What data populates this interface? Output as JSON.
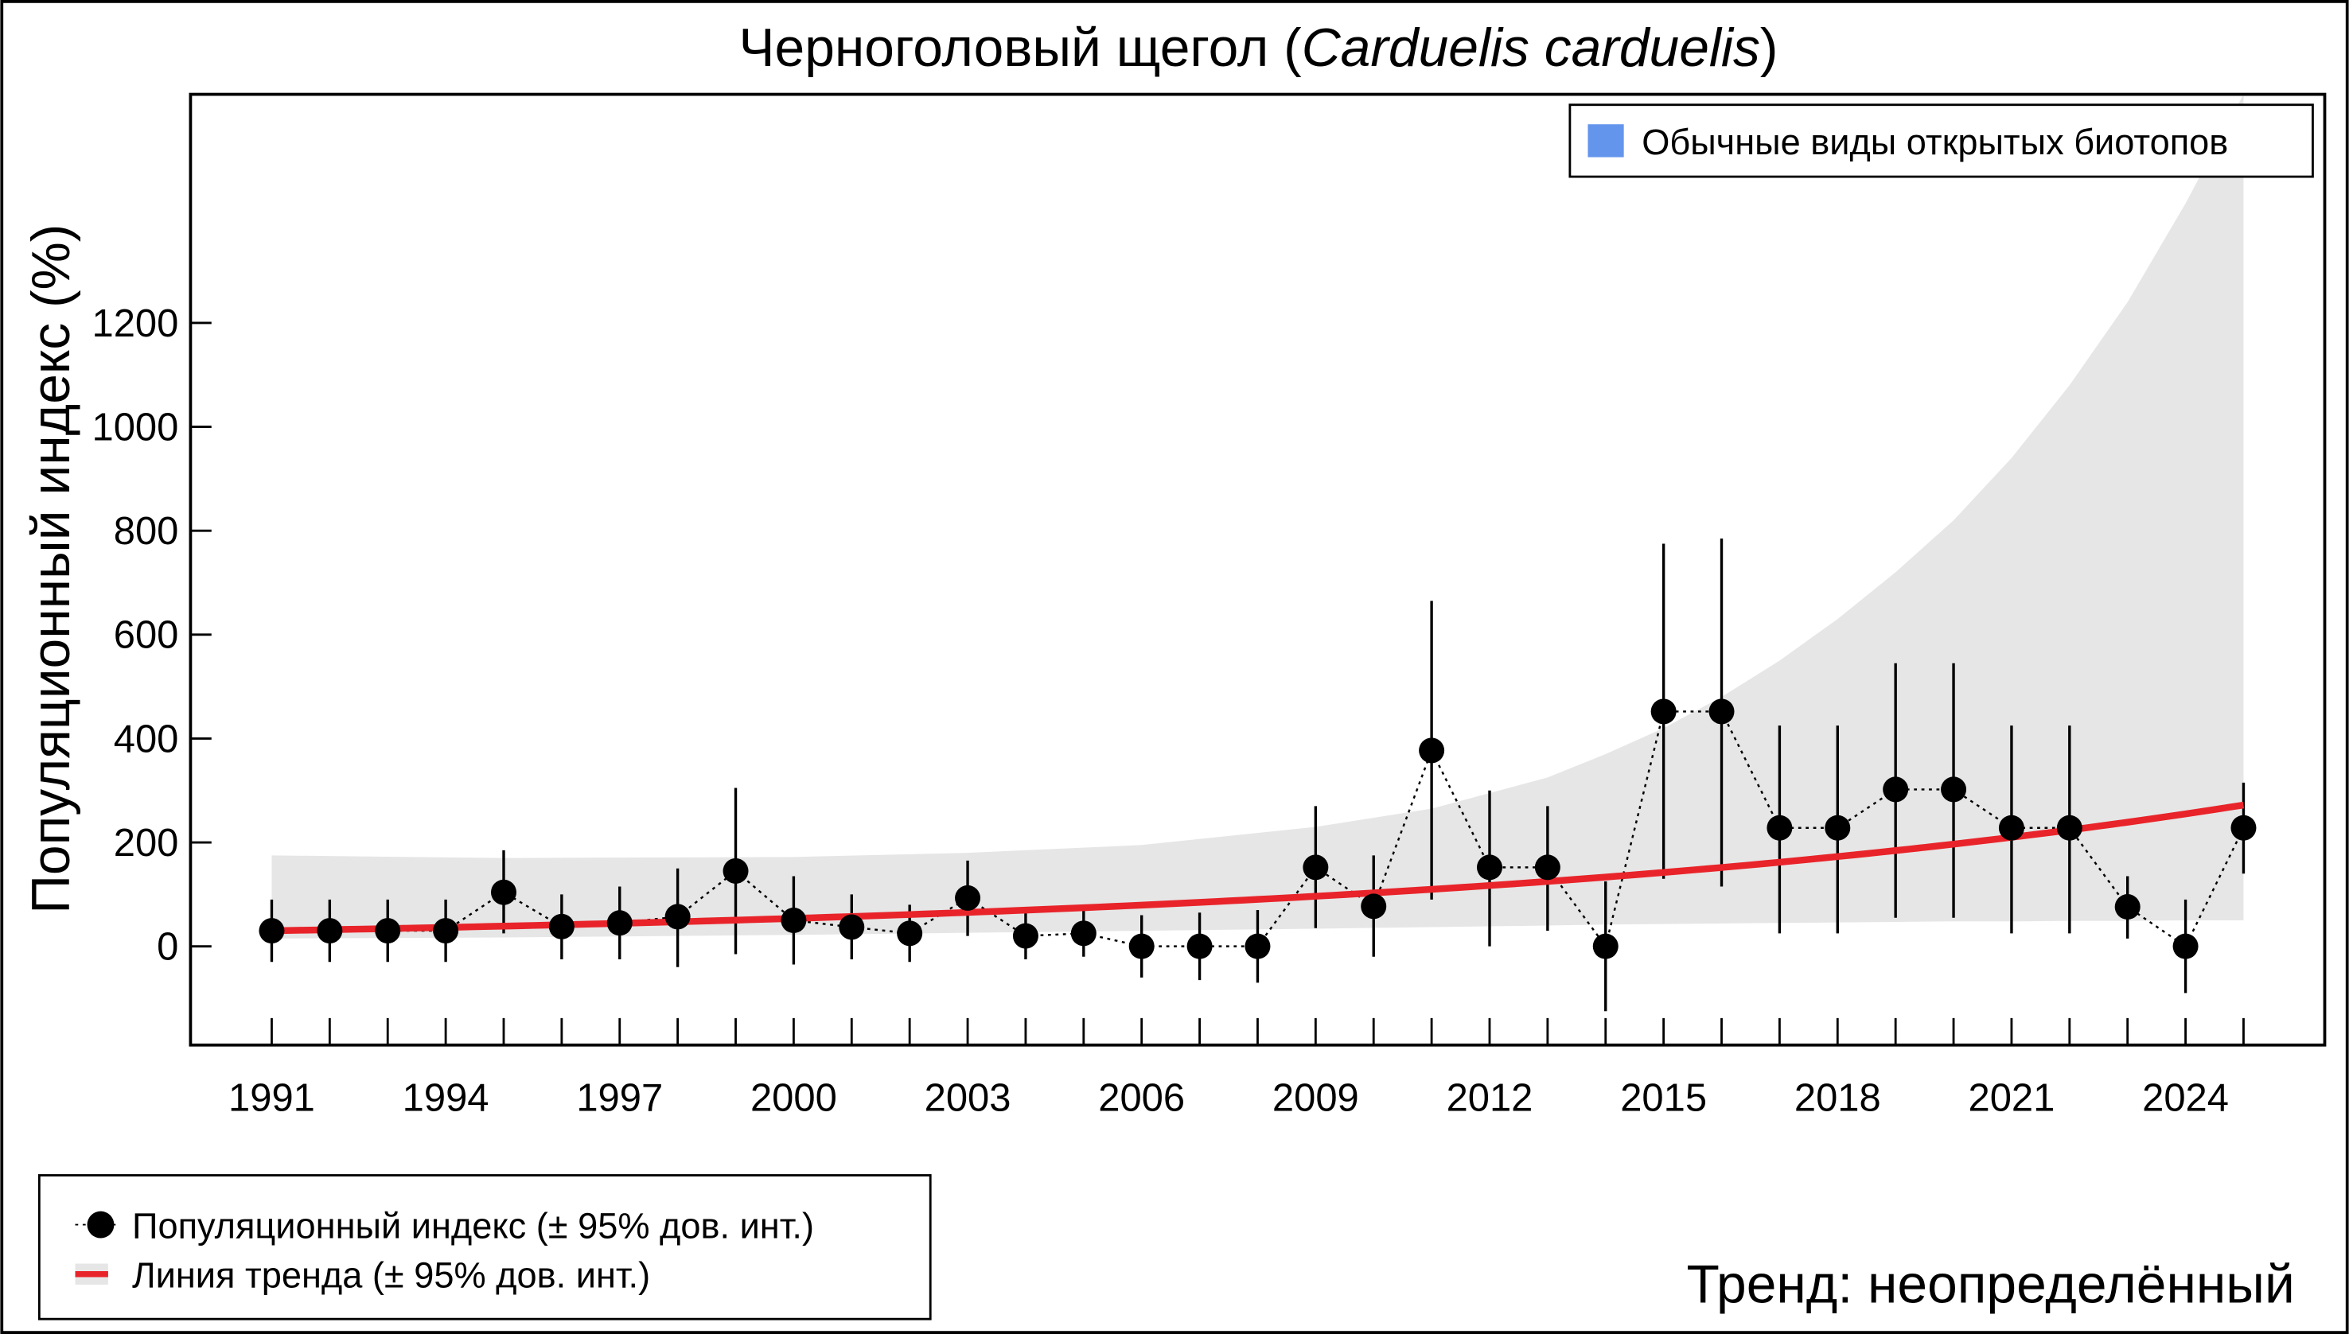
{
  "chart_data": {
    "type": "line",
    "title": "Черноголовый щегол",
    "title_latin": "Carduelis carduelis",
    "xlabel": "",
    "ylabel": "Популяционный индекс (%)",
    "xlim": [
      1989.6,
      2026.4
    ],
    "ylim": [
      -190,
      1640
    ],
    "x_ticks": [
      1991,
      1994,
      1997,
      2000,
      2003,
      2006,
      2009,
      2012,
      2015,
      2018,
      2021,
      2024
    ],
    "y_ticks": [
      0,
      200,
      400,
      600,
      800,
      1000,
      1200
    ],
    "grid": false,
    "years": [
      1991,
      1992,
      1993,
      1994,
      1995,
      1996,
      1997,
      1998,
      1999,
      2000,
      2001,
      2002,
      2003,
      2004,
      2005,
      2006,
      2007,
      2008,
      2009,
      2010,
      2011,
      2012,
      2013,
      2014,
      2015,
      2016,
      2017,
      2018,
      2019,
      2020,
      2021,
      2022,
      2023,
      2024,
      2025
    ],
    "index": [
      30,
      30,
      30,
      30,
      104,
      38,
      45,
      57,
      145,
      50,
      37,
      25,
      93,
      20,
      25,
      0,
      0,
      0,
      152,
      77,
      377,
      152,
      152,
      0,
      452,
      452,
      228,
      228,
      302,
      302,
      228,
      228,
      76,
      0,
      228
    ],
    "ci_low": [
      -30,
      -30,
      -30,
      -30,
      25,
      -25,
      -25,
      -40,
      -15,
      -35,
      -25,
      -30,
      20,
      -25,
      -20,
      -60,
      -65,
      -70,
      35,
      -20,
      90,
      0,
      30,
      -125,
      130,
      115,
      25,
      25,
      55,
      55,
      25,
      25,
      15,
      -90,
      140
    ],
    "ci_high": [
      90,
      90,
      90,
      90,
      185,
      100,
      115,
      150,
      305,
      135,
      100,
      80,
      165,
      70,
      75,
      60,
      65,
      70,
      270,
      175,
      665,
      300,
      270,
      125,
      775,
      785,
      425,
      425,
      545,
      545,
      425,
      425,
      135,
      90,
      315
    ],
    "trend": {
      "years": [
        1991,
        1995,
        2000,
        2005,
        2009,
        2012,
        2015,
        2018,
        2021,
        2025
      ],
      "values": [
        30,
        39,
        53,
        72,
        92,
        111,
        135,
        165,
        201,
        272
      ],
      "ci_years": [
        1991,
        1995,
        2000,
        2003,
        2006,
        2009,
        2011,
        2013,
        2014,
        2015,
        2016,
        2017,
        2018,
        2019,
        2020,
        2021,
        2022,
        2023,
        2024,
        2025
      ],
      "ci_upper": [
        175,
        170,
        172,
        180,
        195,
        230,
        265,
        325,
        370,
        420,
        480,
        550,
        630,
        720,
        820,
        940,
        1080,
        1240,
        1430,
        1640
      ],
      "ci_lower": [
        15,
        17,
        22,
        26,
        30,
        34,
        37,
        40,
        42,
        43,
        44,
        45,
        46,
        47,
        48,
        48,
        49,
        49,
        50,
        50
      ]
    },
    "colors": {
      "trend": "#e8242a",
      "ci_band": "#e6e6e6",
      "points": "#000000",
      "habitat": "#6495ed"
    },
    "legend_habitat": "Обычные виды открытых биотопов",
    "legend_index": "Популяционный индекс (± 95% дов. инт.)",
    "legend_trend": "Линия тренда (± 95% дов. инт.)",
    "trend_status": "Тренд: неопределённый"
  }
}
